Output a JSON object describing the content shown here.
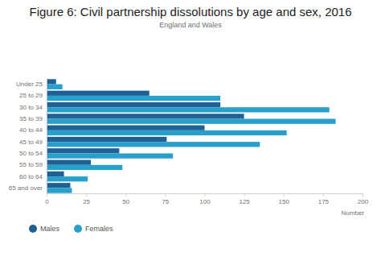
{
  "chart_data": {
    "type": "bar",
    "orientation": "horizontal",
    "title": "Figure 6: Civil partnership dissolutions by age and sex, 2016",
    "subtitle": "England and Wales",
    "x_label": "Number",
    "categories": [
      "Under 25",
      "25 to 29",
      "30 to 34",
      "35 to 39",
      "40 to 44",
      "45 to 49",
      "50 to 54",
      "55 to 59",
      "60 to 64",
      "65 and over"
    ],
    "series": [
      {
        "name": "Males",
        "color": "#206095",
        "values": [
          6,
          65,
          110,
          125,
          100,
          76,
          46,
          28,
          11,
          15
        ]
      },
      {
        "name": "Females",
        "color": "#27a0cc",
        "values": [
          10,
          110,
          179,
          183,
          152,
          135,
          80,
          48,
          26,
          16
        ]
      }
    ],
    "xlim": [
      0,
      200
    ],
    "xticks": [
      0,
      25,
      50,
      75,
      100,
      125,
      150,
      175,
      200
    ],
    "grid": false,
    "legend": "bottom-left"
  }
}
